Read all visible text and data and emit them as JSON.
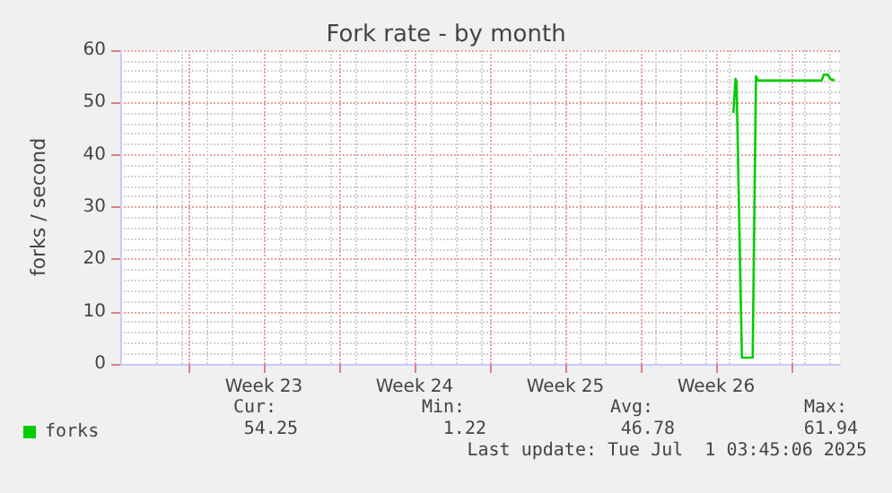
{
  "chart_data": {
    "type": "line",
    "title": "Fork rate - by month",
    "ylabel": "forks / second",
    "xlim": [
      "2025-05-28T17:45",
      "2025-07-01T03:45"
    ],
    "xticks": [
      {
        "value": "2025-05-31T21:45",
        "label": null
      },
      {
        "value": "2025-06-04T09:45",
        "label": "Week 23"
      },
      {
        "value": "2025-06-07T21:45",
        "label": null
      },
      {
        "value": "2025-06-11T09:45",
        "label": "Week 24"
      },
      {
        "value": "2025-06-14T21:45",
        "label": null
      },
      {
        "value": "2025-06-18T09:45",
        "label": "Week 25"
      },
      {
        "value": "2025-06-21T21:45",
        "label": null
      },
      {
        "value": "2025-06-25T09:45",
        "label": "Week 26"
      },
      {
        "value": "2025-06-28T21:45",
        "label": null
      }
    ],
    "ylim": [
      0,
      60
    ],
    "yticks": [
      0,
      10,
      20,
      30,
      40,
      50,
      60
    ],
    "grid": true,
    "legend": "bottom left",
    "marker": "none",
    "line_style": "solid",
    "series": [
      {
        "name": "forks",
        "color": "#00cc00",
        "x": [
          "2025-06-26T05:00",
          "2025-06-26T07:20",
          "2025-06-26T08:30",
          "2025-06-26T14:30",
          "2025-06-27T02:30",
          "2025-06-27T06:10",
          "2025-06-27T08:30",
          "2025-06-30T07:20",
          "2025-06-30T09:45",
          "2025-06-30T14:30",
          "2025-06-30T16:55",
          "2025-06-30T21:45"
        ],
        "values": [
          48,
          54.5,
          54,
          1.2,
          1.2,
          55,
          54.2,
          54.2,
          55.3,
          55.3,
          54.5,
          54.2
        ]
      }
    ],
    "annotations": [
      "Cur:",
      "Min:",
      "Avg:",
      "Max:",
      "54.25",
      "1.22",
      "46.78",
      "61.94",
      "Last update: Tue Jul  1 03:45:06 2025"
    ]
  }
}
